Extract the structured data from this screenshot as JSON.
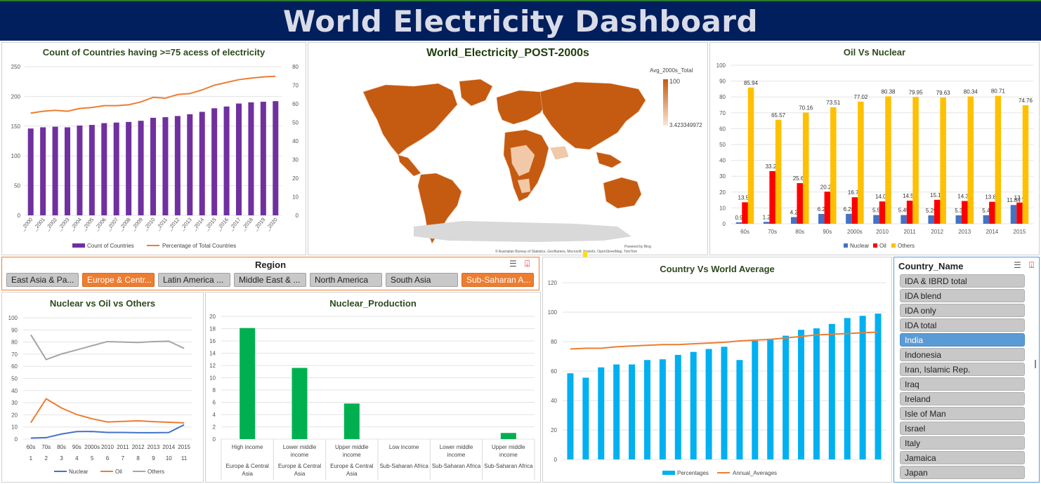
{
  "dashboard": {
    "title": "World Electricity Dashboard"
  },
  "colors": {
    "purple": "#7030A0",
    "orange": "#ED7D31",
    "blue": "#4472C4",
    "red": "#FF0000",
    "yellow": "#FFC000",
    "green": "#00B050",
    "cyan": "#00B0F0",
    "gray": "#A5A5A5",
    "mapbrown": "#C55A11",
    "navy": "#001F5C"
  },
  "chart1": {
    "title": "Count of Countries having >=75 acess of electricity",
    "chart_data": {
      "type": "bar",
      "categories": [
        "_2000",
        "_2001",
        "_2002",
        "_2003",
        "_2004",
        "_2005",
        "_2006",
        "_2007",
        "_2008",
        "_2009",
        "_2010",
        "_2011",
        "_2012",
        "_2013",
        "_2014",
        "_2015",
        "_2016",
        "_2017",
        "_2018",
        "_2019",
        "_2020"
      ],
      "series": [
        {
          "name": "Count of Countries",
          "type": "bar",
          "axis": "left",
          "values": [
            146,
            148,
            149,
            148,
            151,
            152,
            155,
            156,
            157,
            159,
            164,
            165,
            167,
            170,
            174,
            180,
            183,
            188,
            190,
            191,
            192
          ]
        },
        {
          "name": "Percentage of Total Countries",
          "type": "line",
          "axis": "right",
          "values": [
            55,
            56,
            56.5,
            56,
            57.5,
            58,
            59,
            59,
            59.5,
            61,
            63.5,
            63,
            65,
            65.5,
            67.5,
            70,
            71.5,
            73,
            73.8,
            74.5,
            74.8
          ]
        }
      ],
      "ylim": [
        0,
        250
      ],
      "y2lim": [
        0,
        80
      ],
      "yticks": [
        "0",
        "50",
        "100",
        "150",
        "200",
        "250"
      ],
      "y2ticks": [
        "0",
        "10",
        "20",
        "30",
        "40",
        "50",
        "60",
        "70",
        "80"
      ],
      "legend": "bottom"
    }
  },
  "map": {
    "title": "World_Electricity_POST-2000s",
    "legend_title": "Avg_2000s_Total",
    "legend_max": "100",
    "legend_min": "3.423349972",
    "powered_by": "Powered by Bing",
    "attribution": "© Australian Bureau of Statistics, GeoNames, Microsoft, Navinfo, OpenStreetMap, TomTom"
  },
  "chart2": {
    "title": "Oil Vs Nuclear",
    "chart_data": {
      "type": "bar",
      "categories": [
        "60s",
        "70s",
        "80s",
        "90s",
        "2000s",
        "2010",
        "2011",
        "2012",
        "2013",
        "2014",
        "2015"
      ],
      "series": [
        {
          "name": "Nuclear",
          "values": [
            0.9,
            1.2,
            4.2,
            6.2,
            6.26,
            5.5,
            5.49,
            5.29,
            5.3,
            5.4,
            11.84
          ]
        },
        {
          "name": "Oil",
          "values": [
            13.56,
            33.23,
            25.63,
            20.24,
            16.72,
            14.09,
            14.56,
            15.12,
            14.36,
            13.87,
            13.4
          ]
        },
        {
          "name": "Others",
          "values": [
            85.94,
            65.57,
            70.16,
            73.51,
            77.02,
            80.38,
            79.95,
            79.63,
            80.34,
            80.71,
            74.76
          ]
        }
      ],
      "labels": {
        "Nuclear": [
          "0.9",
          "1.2",
          "4.2",
          "6.2",
          "6.26",
          "5.5",
          "5.49",
          "5.29",
          "5.3",
          "5.4",
          "11.84"
        ],
        "Oil": [
          "13.56",
          "33.23",
          "25.63",
          "20.24",
          "16.72",
          "14.09",
          "14.56",
          "15.12",
          "14.36",
          "13.87",
          "13.4"
        ],
        "Others": [
          "85.94",
          "65.57",
          "70.16",
          "73.51",
          "77.02",
          "80.38",
          "79.95",
          "79.63",
          "80.34",
          "80.71",
          "74.76"
        ]
      },
      "ylim": [
        0,
        100
      ],
      "yticks": [
        "0",
        "10",
        "20",
        "30",
        "40",
        "50",
        "60",
        "70",
        "80",
        "90",
        "100"
      ],
      "legend": "bottom"
    }
  },
  "region_slicer": {
    "title": "Region",
    "items": [
      {
        "label": "East Asia & Pa...",
        "selected": false
      },
      {
        "label": "Europe & Centr...",
        "selected": true
      },
      {
        "label": "Latin America ...",
        "selected": false
      },
      {
        "label": "Middle East & ...",
        "selected": false
      },
      {
        "label": "North America",
        "selected": false
      },
      {
        "label": "South Asia",
        "selected": false
      },
      {
        "label": "Sub-Saharan A...",
        "selected": true
      }
    ]
  },
  "chart3": {
    "title": "Nuclear vs Oil vs Others",
    "chart_data": {
      "type": "line",
      "categories": [
        "60s",
        "70s",
        "80s",
        "90s",
        "2000s",
        "2010",
        "2011",
        "2012",
        "2013",
        "2014",
        "2015"
      ],
      "subcategories": [
        "1",
        "2",
        "3",
        "4",
        "5",
        "6",
        "7",
        "8",
        "9",
        "10",
        "11"
      ],
      "series": [
        {
          "name": "Nuclear",
          "values": [
            0.9,
            1.2,
            4.2,
            6.2,
            6.26,
            5.5,
            5.49,
            5.29,
            5.3,
            5.4,
            11.84
          ]
        },
        {
          "name": "Oil",
          "values": [
            13.56,
            33.23,
            25.63,
            20.24,
            16.72,
            14.09,
            14.56,
            15.12,
            14.36,
            13.87,
            13.4
          ]
        },
        {
          "name": "Others",
          "values": [
            85.94,
            65.57,
            70.16,
            73.51,
            77.02,
            80.38,
            79.95,
            79.63,
            80.34,
            80.71,
            74.76
          ]
        }
      ],
      "ylim": [
        0,
        100
      ],
      "yticks": [
        "0",
        "10",
        "20",
        "30",
        "40",
        "50",
        "60",
        "70",
        "80",
        "90",
        "100"
      ],
      "legend": "bottom"
    }
  },
  "chart4": {
    "title": "Nuclear_Production",
    "chart_data": {
      "type": "bar",
      "categories": [
        {
          "income": "High income",
          "region": "Europe & Central Asia"
        },
        {
          "income": "Lower middle income",
          "region": "Europe & Central Asia"
        },
        {
          "income": "Upper middle income",
          "region": "Europe & Central Asia"
        },
        {
          "income": "Low income",
          "region": "Sub-Saharan Africa"
        },
        {
          "income": "Lower middle income",
          "region": "Sub-Saharan Africa"
        },
        {
          "income": "Upper middle income",
          "region": "Sub-Saharan Africa"
        }
      ],
      "category_lines": [
        [
          "High income"
        ],
        [
          "Lower middle",
          "income"
        ],
        [
          "Upper middle",
          "income"
        ],
        [
          "Low income"
        ],
        [
          "Lower middle",
          "income"
        ],
        [
          "Upper middle",
          "income"
        ]
      ],
      "region_lines": [
        [
          "Europe & Central",
          "Asia"
        ],
        [
          "Europe & Central",
          "Asia"
        ],
        [
          "Europe & Central",
          "Asia"
        ],
        [
          "Sub-Saharan Africa"
        ],
        [
          "Sub-Saharan Africa"
        ],
        [
          "Sub-Saharan Africa"
        ]
      ],
      "values": [
        18.1,
        11.6,
        5.8,
        0,
        0,
        1.0
      ],
      "ylim": [
        0,
        20
      ],
      "yticks": [
        "0",
        "2",
        "4",
        "6",
        "8",
        "10",
        "12",
        "14",
        "16",
        "18",
        "20"
      ]
    }
  },
  "chart5": {
    "title": "Country Vs World Average",
    "chart_data": {
      "type": "bar",
      "series": [
        {
          "name": "Percentages",
          "type": "bar",
          "values": [
            58.5,
            55.5,
            62.5,
            64.5,
            64.5,
            67.5,
            68,
            71,
            73,
            75,
            76.5,
            67.5,
            80.5,
            82,
            84,
            88,
            89,
            92,
            96,
            97.5,
            99
          ]
        },
        {
          "name": "Annual_Averages",
          "type": "line",
          "values": [
            75,
            75.5,
            75.5,
            76.5,
            77,
            77.5,
            78,
            78,
            78.5,
            79,
            79.5,
            80.5,
            81,
            81.5,
            82.5,
            83.5,
            84.5,
            85,
            85.5,
            86,
            86.5
          ]
        }
      ],
      "ylim": [
        0,
        120
      ],
      "yticks": [
        "0",
        "20",
        "40",
        "60",
        "80",
        "100",
        "120"
      ],
      "legend": "bottom"
    }
  },
  "country_slicer": {
    "title": "Country_Name",
    "items": [
      {
        "label": "IDA & IBRD total",
        "selected": false
      },
      {
        "label": "IDA blend",
        "selected": false
      },
      {
        "label": "IDA only",
        "selected": false
      },
      {
        "label": "IDA total",
        "selected": false
      },
      {
        "label": "India",
        "selected": true
      },
      {
        "label": "Indonesia",
        "selected": false
      },
      {
        "label": "Iran, Islamic Rep.",
        "selected": false
      },
      {
        "label": "Iraq",
        "selected": false
      },
      {
        "label": "Ireland",
        "selected": false
      },
      {
        "label": "Isle of Man",
        "selected": false
      },
      {
        "label": "Israel",
        "selected": false
      },
      {
        "label": "Italy",
        "selected": false
      },
      {
        "label": "Jamaica",
        "selected": false
      },
      {
        "label": "Japan",
        "selected": false
      }
    ]
  }
}
